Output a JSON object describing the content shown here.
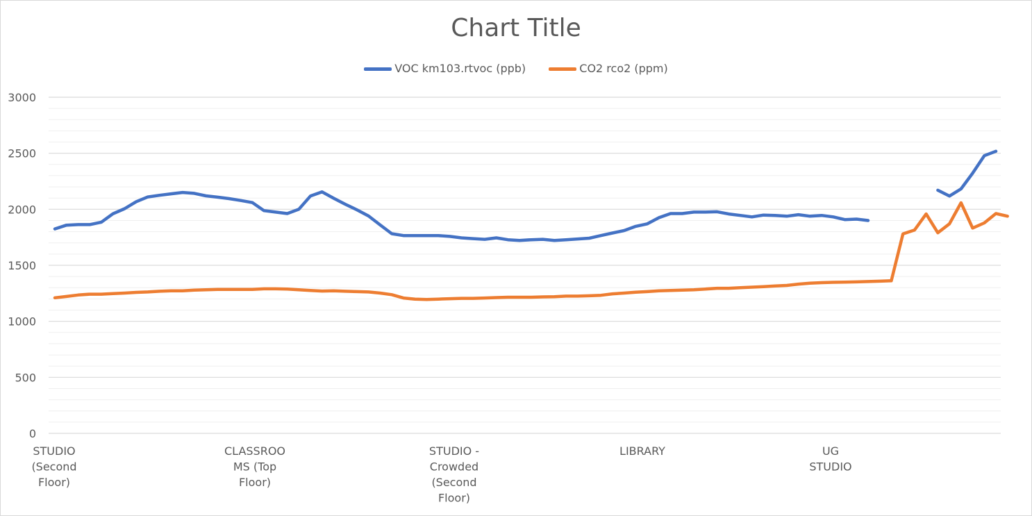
{
  "chart_data": {
    "type": "line",
    "title": "Chart Title",
    "xlabel": "",
    "ylabel": "",
    "ylim": [
      0,
      3000
    ],
    "y_ticks": [
      0,
      500,
      1000,
      1500,
      2000,
      2500,
      3000
    ],
    "grid": "horizontal major and minor",
    "legend_position": "top",
    "category_labels": [
      {
        "index": 0,
        "lines": [
          "STUDIO",
          "(Second",
          "Floor)"
        ]
      },
      {
        "index": 17,
        "lines": [
          "CLASSROO",
          "MS (Top",
          "Floor)"
        ]
      },
      {
        "index": 35,
        "lines": [
          "STUDIO -",
          "Crowded",
          "(Second",
          "Floor)"
        ]
      },
      {
        "index": 52,
        "lines": [
          "LIBRARY"
        ]
      },
      {
        "index": 69,
        "lines": [
          "UG",
          "STUDIO"
        ]
      }
    ],
    "series": [
      {
        "name": "VOC km103.rtvoc (ppb)",
        "color": "#4472c4",
        "values": [
          1825,
          1858,
          1863,
          1863,
          1885,
          1960,
          2005,
          2068,
          2110,
          2125,
          2138,
          2150,
          2142,
          2120,
          2108,
          2095,
          2078,
          2060,
          1988,
          1975,
          1962,
          2000,
          2118,
          2155,
          2098,
          2045,
          1995,
          1940,
          1860,
          1782,
          1765,
          1765,
          1765,
          1765,
          1758,
          1745,
          1738,
          1732,
          1745,
          1728,
          1722,
          1728,
          1732,
          1722,
          1728,
          1735,
          1742,
          1765,
          1788,
          1810,
          1848,
          1870,
          1925,
          1962,
          1962,
          1975,
          1975,
          1978,
          1958,
          1945,
          1932,
          1948,
          1945,
          1938,
          1952,
          1938,
          1945,
          1932,
          1908,
          1912,
          1900,
          null,
          null,
          null,
          null,
          null,
          2170,
          2118,
          2182,
          2322,
          2478,
          2518
        ]
      },
      {
        "name": "CO2 rco2 (ppm)",
        "color": "#ed7d31",
        "values": [
          1210,
          1222,
          1235,
          1242,
          1242,
          1248,
          1252,
          1258,
          1262,
          1268,
          1272,
          1272,
          1278,
          1282,
          1285,
          1285,
          1285,
          1285,
          1290,
          1290,
          1288,
          1282,
          1275,
          1270,
          1272,
          1268,
          1265,
          1262,
          1252,
          1238,
          1208,
          1198,
          1195,
          1198,
          1202,
          1205,
          1205,
          1208,
          1212,
          1215,
          1215,
          1215,
          1218,
          1220,
          1225,
          1225,
          1228,
          1232,
          1245,
          1252,
          1260,
          1265,
          1272,
          1275,
          1278,
          1282,
          1288,
          1295,
          1295,
          1300,
          1305,
          1310,
          1315,
          1320,
          1332,
          1340,
          1345,
          1348,
          1350,
          1352,
          1355,
          1358,
          1362,
          1780,
          1815,
          1958,
          1790,
          1870,
          2058,
          1832,
          1878,
          1962,
          1938
        ]
      }
    ]
  }
}
